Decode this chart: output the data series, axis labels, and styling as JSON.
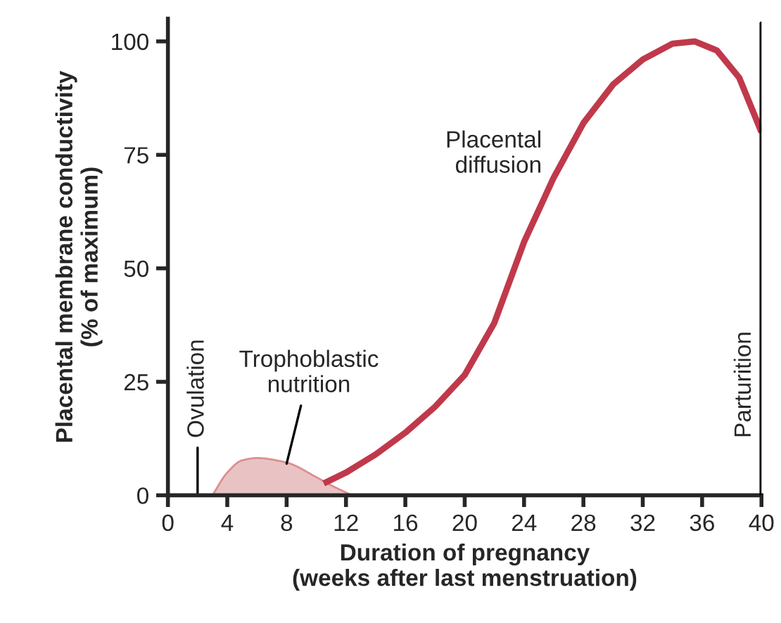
{
  "chart_data": {
    "type": "line",
    "xlabel": "Duration of pregnancy\n(weeks after last menstruation)",
    "ylabel": "Placental membrane conductivity\n(% of maximum)",
    "xlim": [
      0,
      40
    ],
    "ylim": [
      0,
      105
    ],
    "xticks": [
      0,
      4,
      8,
      12,
      16,
      20,
      24,
      28,
      32,
      36,
      40
    ],
    "yticks": [
      0,
      25,
      50,
      75,
      100
    ],
    "grid": false,
    "legend": false,
    "series": [
      {
        "name": "Trophoblastic nutrition",
        "type": "area",
        "color": "#e9c3c3",
        "x": [
          3,
          4,
          5,
          6,
          8,
          10,
          11,
          12.4
        ],
        "values": [
          0,
          5,
          7.7,
          8.2,
          7.2,
          4,
          2.2,
          0
        ]
      },
      {
        "name": "Placental diffusion",
        "color": "#c0394b",
        "x": [
          10.5,
          12,
          14,
          16,
          18,
          20,
          22,
          24,
          26,
          28,
          30,
          32,
          34,
          35.5,
          37,
          38.5,
          40
        ],
        "values": [
          2.6,
          5,
          9,
          13.8,
          19.5,
          26.5,
          38,
          55.8,
          70,
          82,
          90.5,
          96,
          99.5,
          100,
          98,
          92,
          80
        ]
      }
    ],
    "ref_lines": [
      {
        "axis": "x",
        "value": 2,
        "label": "Ovulation"
      },
      {
        "axis": "x",
        "value": 40,
        "label": "Parturition"
      }
    ]
  }
}
